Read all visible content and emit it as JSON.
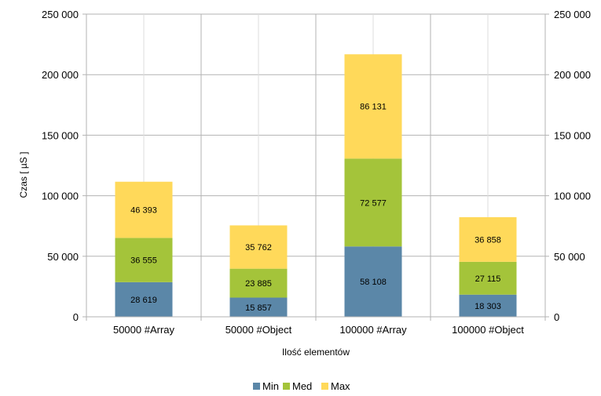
{
  "chart_data": {
    "type": "bar",
    "stacked": true,
    "categories": [
      "50000 #Array",
      "50000 #Object",
      "100000 #Array",
      "100000 #Object"
    ],
    "series": [
      {
        "name": "Min",
        "color": "#5b87a8",
        "values": [
          28619,
          15857,
          58108,
          18303
        ]
      },
      {
        "name": "Med",
        "color": "#a4c43a",
        "values": [
          36555,
          23885,
          72577,
          27115
        ]
      },
      {
        "name": "Max",
        "color": "#ffd95a",
        "values": [
          46393,
          35762,
          86131,
          36858
        ]
      }
    ],
    "data_labels": [
      [
        "28 619",
        "15 857",
        "58 108",
        "18 303"
      ],
      [
        "36 555",
        "23 885",
        "72 577",
        "27 115"
      ],
      [
        "46 393",
        "35 762",
        "86 131",
        "36 858"
      ]
    ],
    "xlabel": "Ilość elementów",
    "ylabel": "Czas [ µS ]",
    "ylim": [
      0,
      250000
    ],
    "yticks": [
      0,
      50000,
      100000,
      150000,
      200000,
      250000
    ],
    "ytick_labels": [
      "0",
      "50 000",
      "100 000",
      "150 000",
      "200 000",
      "250 000"
    ],
    "secondary_y_axis": true,
    "grid": true,
    "legend_position": "bottom"
  }
}
